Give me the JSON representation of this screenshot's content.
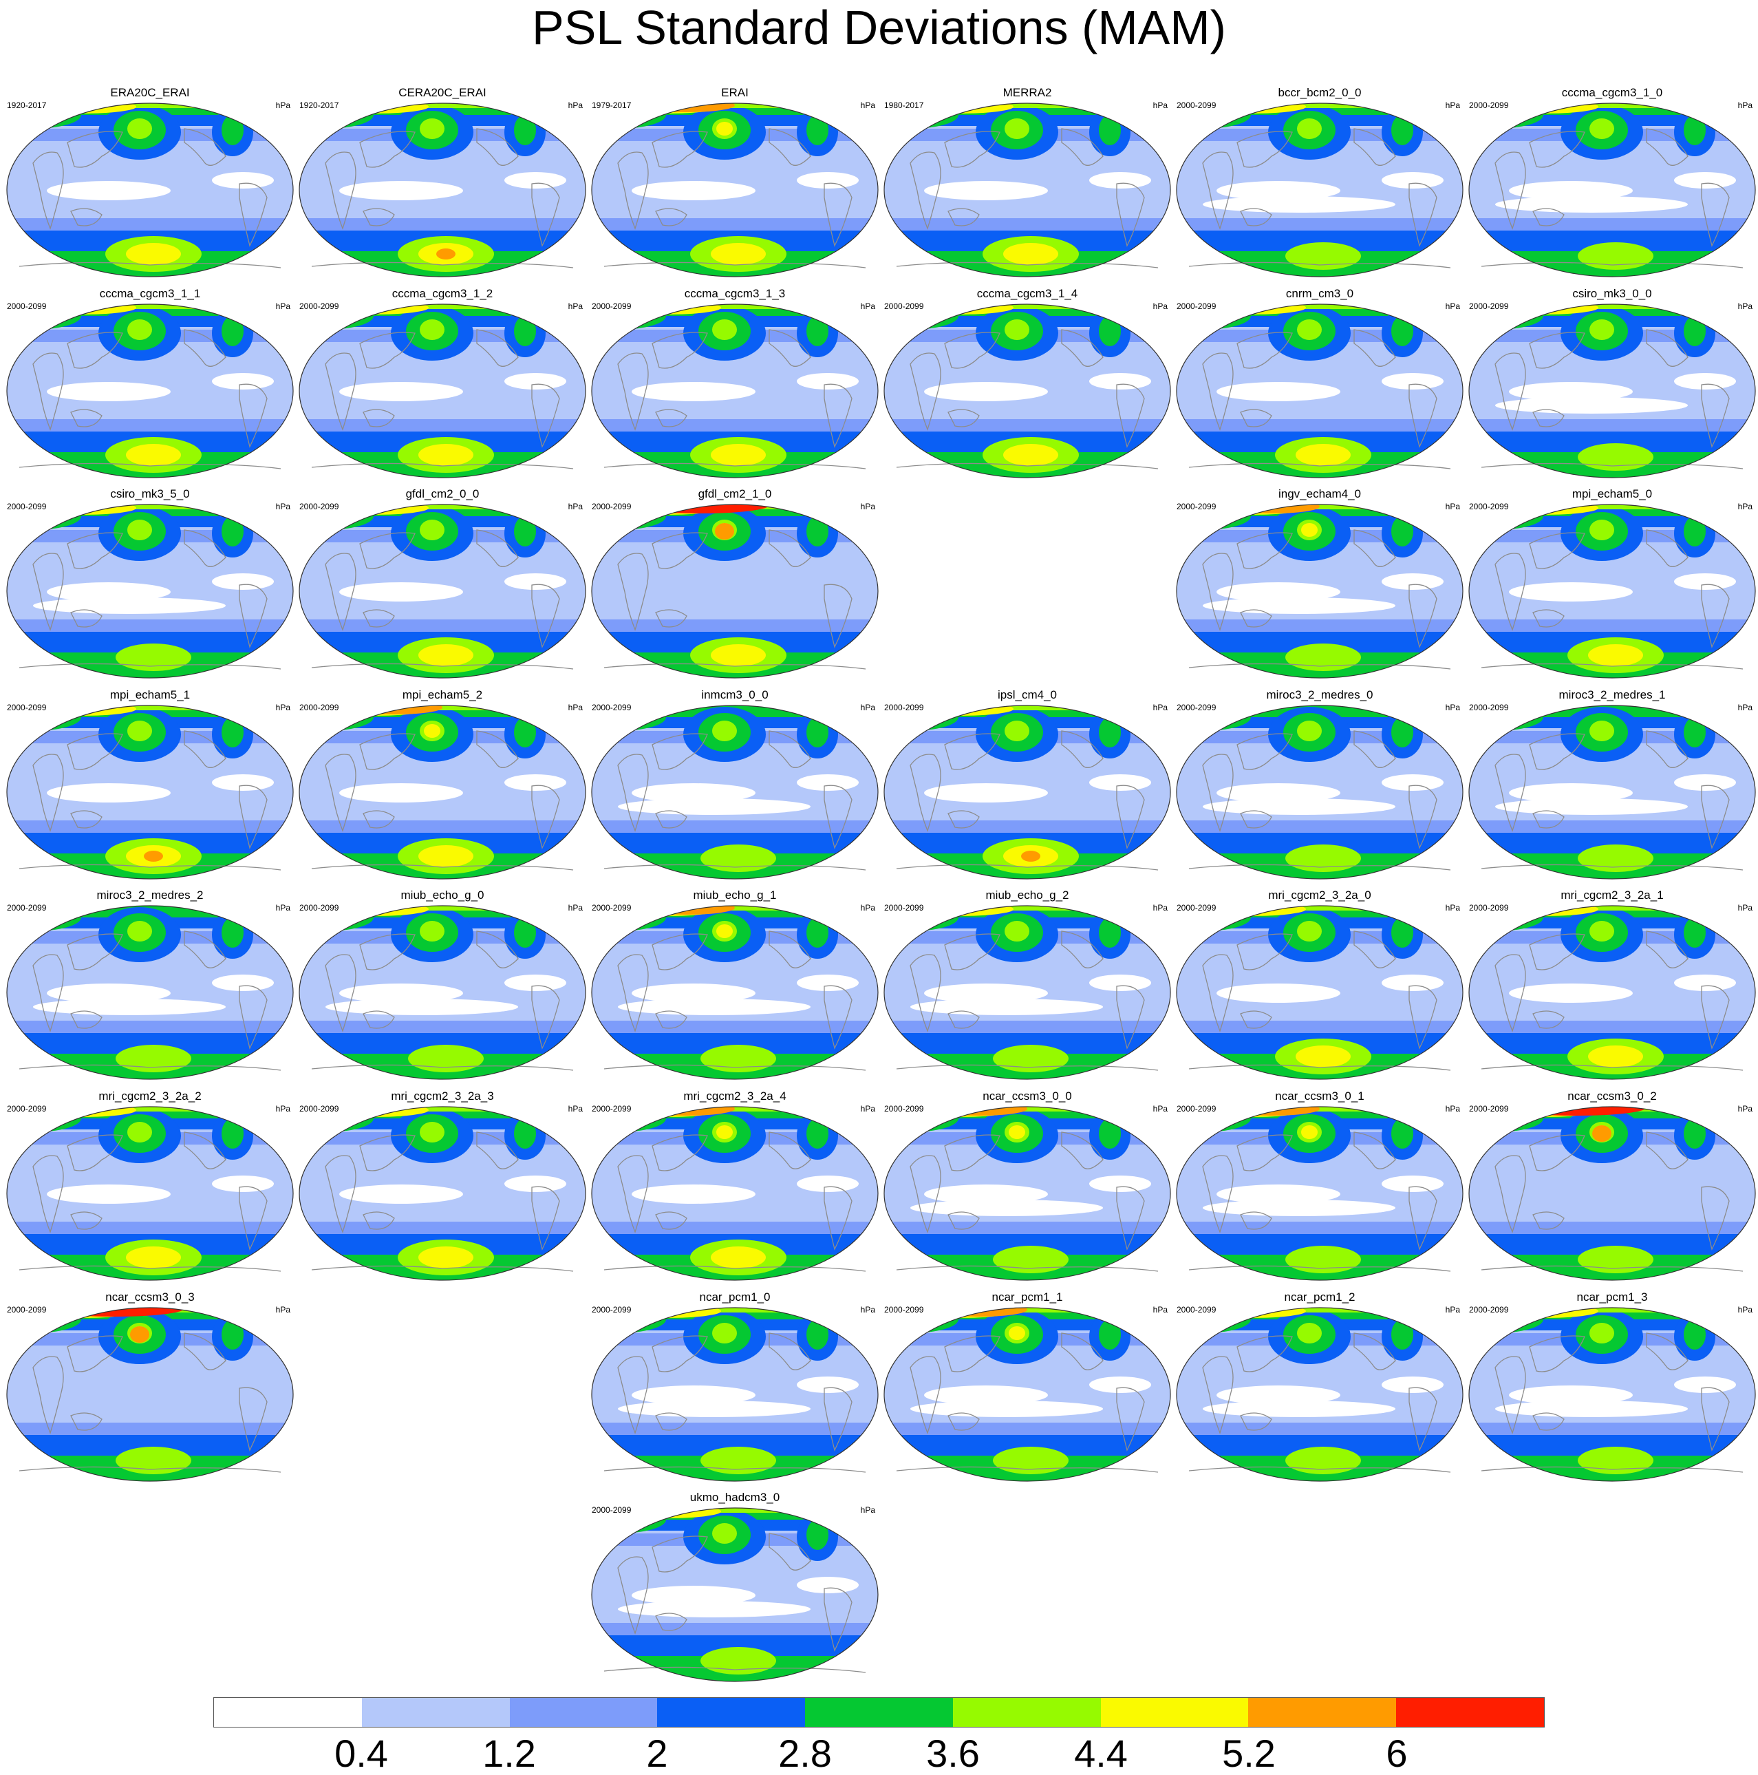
{
  "title": "PSL Standard Deviations (MAM)",
  "units": "hPa",
  "colors": {
    "levels": [
      "#ffffff",
      "#b4c8fa",
      "#7d9cfa",
      "#0a5ff5",
      "#05c832",
      "#96fa00",
      "#fafa00",
      "#ff9b00",
      "#ff1e00"
    ],
    "land_outline": "#8c8c8c"
  },
  "colorbar": {
    "labels": [
      "0.4",
      "1.2",
      "2",
      "2.8",
      "3.6",
      "4.4",
      "5.2",
      "6"
    ]
  },
  "panels": [
    {
      "name": "ERA20C_ERAI",
      "period": "1920-2017",
      "col": 0,
      "row": 0,
      "nh": 0,
      "sh": 0
    },
    {
      "name": "CERA20C_ERAI",
      "period": "1920-2017",
      "col": 1,
      "row": 0,
      "nh": 0,
      "sh": 1
    },
    {
      "name": "ERAI",
      "period": "1979-2017",
      "col": 2,
      "row": 0,
      "nh": 1,
      "sh": 0
    },
    {
      "name": "MERRA2",
      "period": "1980-2017",
      "col": 3,
      "row": 0,
      "nh": 0,
      "sh": 0
    },
    {
      "name": "bccr_bcm2_0_0",
      "period": "2000-2099",
      "col": 4,
      "row": 0,
      "nh": 0,
      "sh": -1
    },
    {
      "name": "cccma_cgcm3_1_0",
      "period": "2000-2099",
      "col": 5,
      "row": 0,
      "nh": 0,
      "sh": -1
    },
    {
      "name": "cccma_cgcm3_1_1",
      "period": "2000-2099",
      "col": 0,
      "row": 1,
      "nh": 0,
      "sh": 0
    },
    {
      "name": "cccma_cgcm3_1_2",
      "period": "2000-2099",
      "col": 1,
      "row": 1,
      "nh": 0,
      "sh": 0
    },
    {
      "name": "cccma_cgcm3_1_3",
      "period": "2000-2099",
      "col": 2,
      "row": 1,
      "nh": 0,
      "sh": 0
    },
    {
      "name": "cccma_cgcm3_1_4",
      "period": "2000-2099",
      "col": 3,
      "row": 1,
      "nh": 0,
      "sh": 0
    },
    {
      "name": "cnrm_cm3_0",
      "period": "2000-2099",
      "col": 4,
      "row": 1,
      "nh": 0,
      "sh": 0
    },
    {
      "name": "csiro_mk3_0_0",
      "period": "2000-2099",
      "col": 5,
      "row": 1,
      "nh": 0,
      "sh": -1
    },
    {
      "name": "csiro_mk3_5_0",
      "period": "2000-2099",
      "col": 0,
      "row": 2,
      "nh": 0,
      "sh": -1
    },
    {
      "name": "gfdl_cm2_0_0",
      "period": "2000-2099",
      "col": 1,
      "row": 2,
      "nh": 0,
      "sh": 0
    },
    {
      "name": "gfdl_cm2_1_0",
      "period": "2000-2099",
      "col": 2,
      "row": 2,
      "nh": 2,
      "sh": 0
    },
    {
      "name": "ingv_echam4_0",
      "period": "2000-2099",
      "col": 4,
      "row": 2,
      "nh": 1,
      "sh": -1
    },
    {
      "name": "mpi_echam5_0",
      "period": "2000-2099",
      "col": 5,
      "row": 2,
      "nh": 0,
      "sh": 0
    },
    {
      "name": "mpi_echam5_1",
      "period": "2000-2099",
      "col": 0,
      "row": 3,
      "nh": 0,
      "sh": 1
    },
    {
      "name": "mpi_echam5_2",
      "period": "2000-2099",
      "col": 1,
      "row": 3,
      "nh": 1,
      "sh": 0
    },
    {
      "name": "inmcm3_0_0",
      "period": "2000-2099",
      "col": 2,
      "row": 3,
      "nh": -1,
      "sh": -1
    },
    {
      "name": "ipsl_cm4_0",
      "period": "2000-2099",
      "col": 3,
      "row": 3,
      "nh": 0,
      "sh": 1
    },
    {
      "name": "miroc3_2_medres_0",
      "period": "2000-2099",
      "col": 4,
      "row": 3,
      "nh": -1,
      "sh": -1
    },
    {
      "name": "miroc3_2_medres_1",
      "period": "2000-2099",
      "col": 5,
      "row": 3,
      "nh": -1,
      "sh": -1
    },
    {
      "name": "miroc3_2_medres_2",
      "period": "2000-2099",
      "col": 0,
      "row": 4,
      "nh": -1,
      "sh": -1
    },
    {
      "name": "miub_echo_g_0",
      "period": "2000-2099",
      "col": 1,
      "row": 4,
      "nh": 0,
      "sh": -1
    },
    {
      "name": "miub_echo_g_1",
      "period": "2000-2099",
      "col": 2,
      "row": 4,
      "nh": 1,
      "sh": -1
    },
    {
      "name": "miub_echo_g_2",
      "period": "2000-2099",
      "col": 3,
      "row": 4,
      "nh": 0,
      "sh": -1
    },
    {
      "name": "mri_cgcm2_3_2a_0",
      "period": "2000-2099",
      "col": 4,
      "row": 4,
      "nh": 0,
      "sh": 0
    },
    {
      "name": "mri_cgcm2_3_2a_1",
      "period": "2000-2099",
      "col": 5,
      "row": 4,
      "nh": 0,
      "sh": 0
    },
    {
      "name": "mri_cgcm2_3_2a_2",
      "period": "2000-2099",
      "col": 0,
      "row": 5,
      "nh": 0,
      "sh": 0
    },
    {
      "name": "mri_cgcm2_3_2a_3",
      "period": "2000-2099",
      "col": 1,
      "row": 5,
      "nh": 0,
      "sh": 0
    },
    {
      "name": "mri_cgcm2_3_2a_4",
      "period": "2000-2099",
      "col": 2,
      "row": 5,
      "nh": 1,
      "sh": 0
    },
    {
      "name": "ncar_ccsm3_0_0",
      "period": "2000-2099",
      "col": 3,
      "row": 5,
      "nh": 1,
      "sh": -1
    },
    {
      "name": "ncar_ccsm3_0_1",
      "period": "2000-2099",
      "col": 4,
      "row": 5,
      "nh": 1,
      "sh": -1
    },
    {
      "name": "ncar_ccsm3_0_2",
      "period": "2000-2099",
      "col": 5,
      "row": 5,
      "nh": 2,
      "sh": -1
    },
    {
      "name": "ncar_ccsm3_0_3",
      "period": "2000-2099",
      "col": 0,
      "row": 6,
      "nh": 2,
      "sh": -1
    },
    {
      "name": "ncar_pcm1_0",
      "period": "2000-2099",
      "col": 2,
      "row": 6,
      "nh": 0,
      "sh": -1
    },
    {
      "name": "ncar_pcm1_1",
      "period": "2000-2099",
      "col": 3,
      "row": 6,
      "nh": 1,
      "sh": -1
    },
    {
      "name": "ncar_pcm1_2",
      "period": "2000-2099",
      "col": 4,
      "row": 6,
      "nh": 0,
      "sh": -1
    },
    {
      "name": "ncar_pcm1_3",
      "period": "2000-2099",
      "col": 5,
      "row": 6,
      "nh": 0,
      "sh": -1
    },
    {
      "name": "ukmo_hadcm3_0",
      "period": "2000-2099",
      "col": 2,
      "row": 7,
      "nh": 0,
      "sh": -1
    }
  ]
}
